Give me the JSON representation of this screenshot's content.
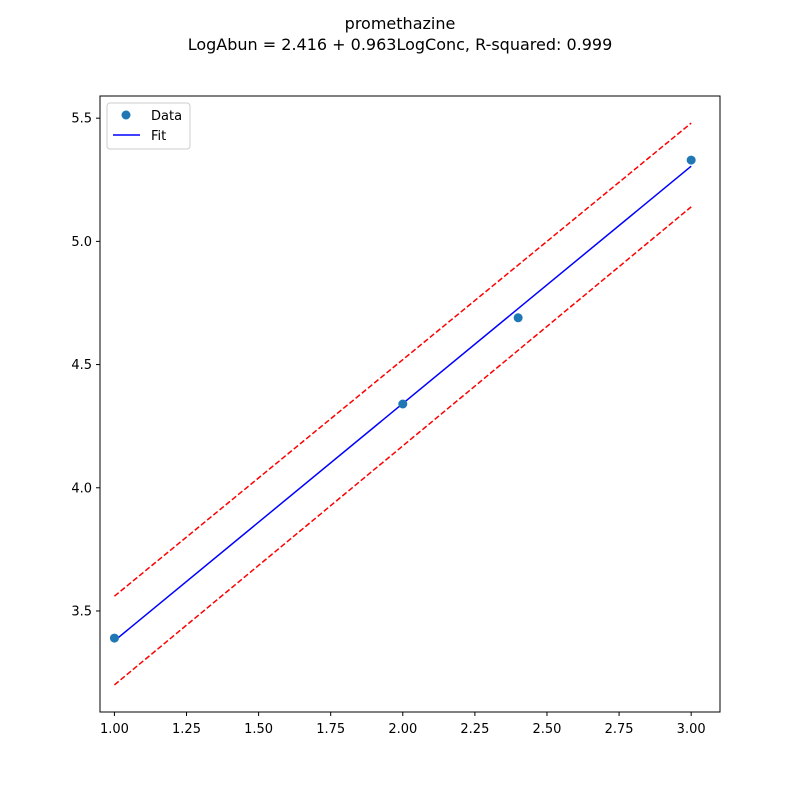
{
  "chart_data": {
    "type": "scatter",
    "title": "promethazine",
    "subtitle": "LogAbun = 2.416 + 0.963LogConc, R-squared: 0.999",
    "xlabel": "",
    "ylabel": "",
    "xlim": [
      0.95,
      3.1
    ],
    "ylim": [
      3.09,
      5.59
    ],
    "xticks": [
      1.0,
      1.25,
      1.5,
      1.75,
      2.0,
      2.25,
      2.5,
      2.75,
      3.0
    ],
    "xtick_labels": [
      "1.00",
      "1.25",
      "1.50",
      "1.75",
      "2.00",
      "2.25",
      "2.50",
      "2.75",
      "3.00"
    ],
    "yticks": [
      3.5,
      4.0,
      4.5,
      5.0,
      5.5
    ],
    "ytick_labels": [
      "3.5",
      "4.0",
      "4.5",
      "5.0",
      "5.5"
    ],
    "grid": false,
    "legend": {
      "placement": "top-left",
      "entries": [
        "Data",
        "Fit"
      ]
    },
    "series": [
      {
        "name": "Data",
        "kind": "scatter",
        "color": "#1f77b4",
        "x": [
          1.0,
          2.0,
          2.4,
          3.0
        ],
        "y": [
          3.39,
          4.34,
          4.69,
          5.33
        ]
      },
      {
        "name": "Fit",
        "kind": "line",
        "color": "#0000ff",
        "x": [
          1.0,
          3.0
        ],
        "y": [
          3.379,
          5.305
        ]
      },
      {
        "kind": "dashed-line",
        "color": "#ff0000",
        "x": [
          1.0,
          3.0
        ],
        "y": [
          3.56,
          5.48
        ]
      },
      {
        "kind": "dashed-line",
        "color": "#ff0000",
        "x": [
          1.0,
          3.0
        ],
        "y": [
          3.2,
          5.14
        ]
      }
    ]
  }
}
